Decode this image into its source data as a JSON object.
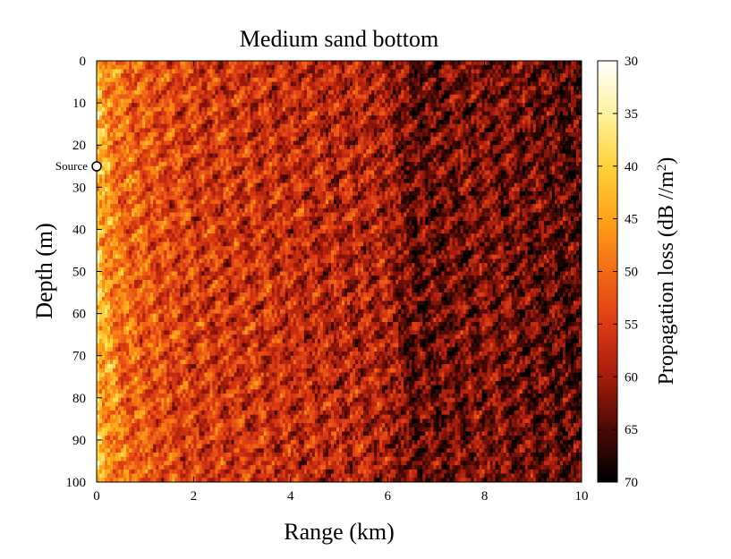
{
  "chart_data": {
    "type": "heatmap",
    "title": "Medium sand bottom",
    "xlabel": "Range (km)",
    "ylabel": "Depth (m)",
    "xlim": [
      0,
      10
    ],
    "ylim": [
      100,
      0
    ],
    "x_ticks": [
      "0",
      "2",
      "4",
      "6",
      "8",
      "10"
    ],
    "y_ticks": [
      "0",
      "10",
      "20",
      "30",
      "40",
      "50",
      "60",
      "70",
      "80",
      "90",
      "100"
    ],
    "colorbar": {
      "label_main": "Propagation loss (dB //m",
      "label_sup": "2",
      "label_end": ")",
      "range": [
        30,
        70
      ],
      "ticks": [
        "30",
        "35",
        "40",
        "45",
        "50",
        "55",
        "60",
        "65",
        "70"
      ],
      "colors": [
        "#ffffff",
        "#fff2a0",
        "#ffd23a",
        "#ffa318",
        "#f26a15",
        "#dc3a14",
        "#a51c0c",
        "#4a0905",
        "#000000"
      ]
    },
    "annotations": [
      {
        "label": "Source",
        "range_km": 0,
        "depth_m": 25
      }
    ],
    "grid": false,
    "approx_loss_by_range": [
      {
        "range_km": 0.1,
        "loss_db": 44
      },
      {
        "range_km": 0.5,
        "loss_db": 50
      },
      {
        "range_km": 1,
        "loss_db": 52
      },
      {
        "range_km": 2,
        "loss_db": 55
      },
      {
        "range_km": 4,
        "loss_db": 57
      },
      {
        "range_km": 6,
        "loss_db": 59
      },
      {
        "range_km": 6.5,
        "loss_db": 64
      },
      {
        "range_km": 8,
        "loss_db": 62
      },
      {
        "range_km": 10,
        "loss_db": 65
      }
    ]
  }
}
